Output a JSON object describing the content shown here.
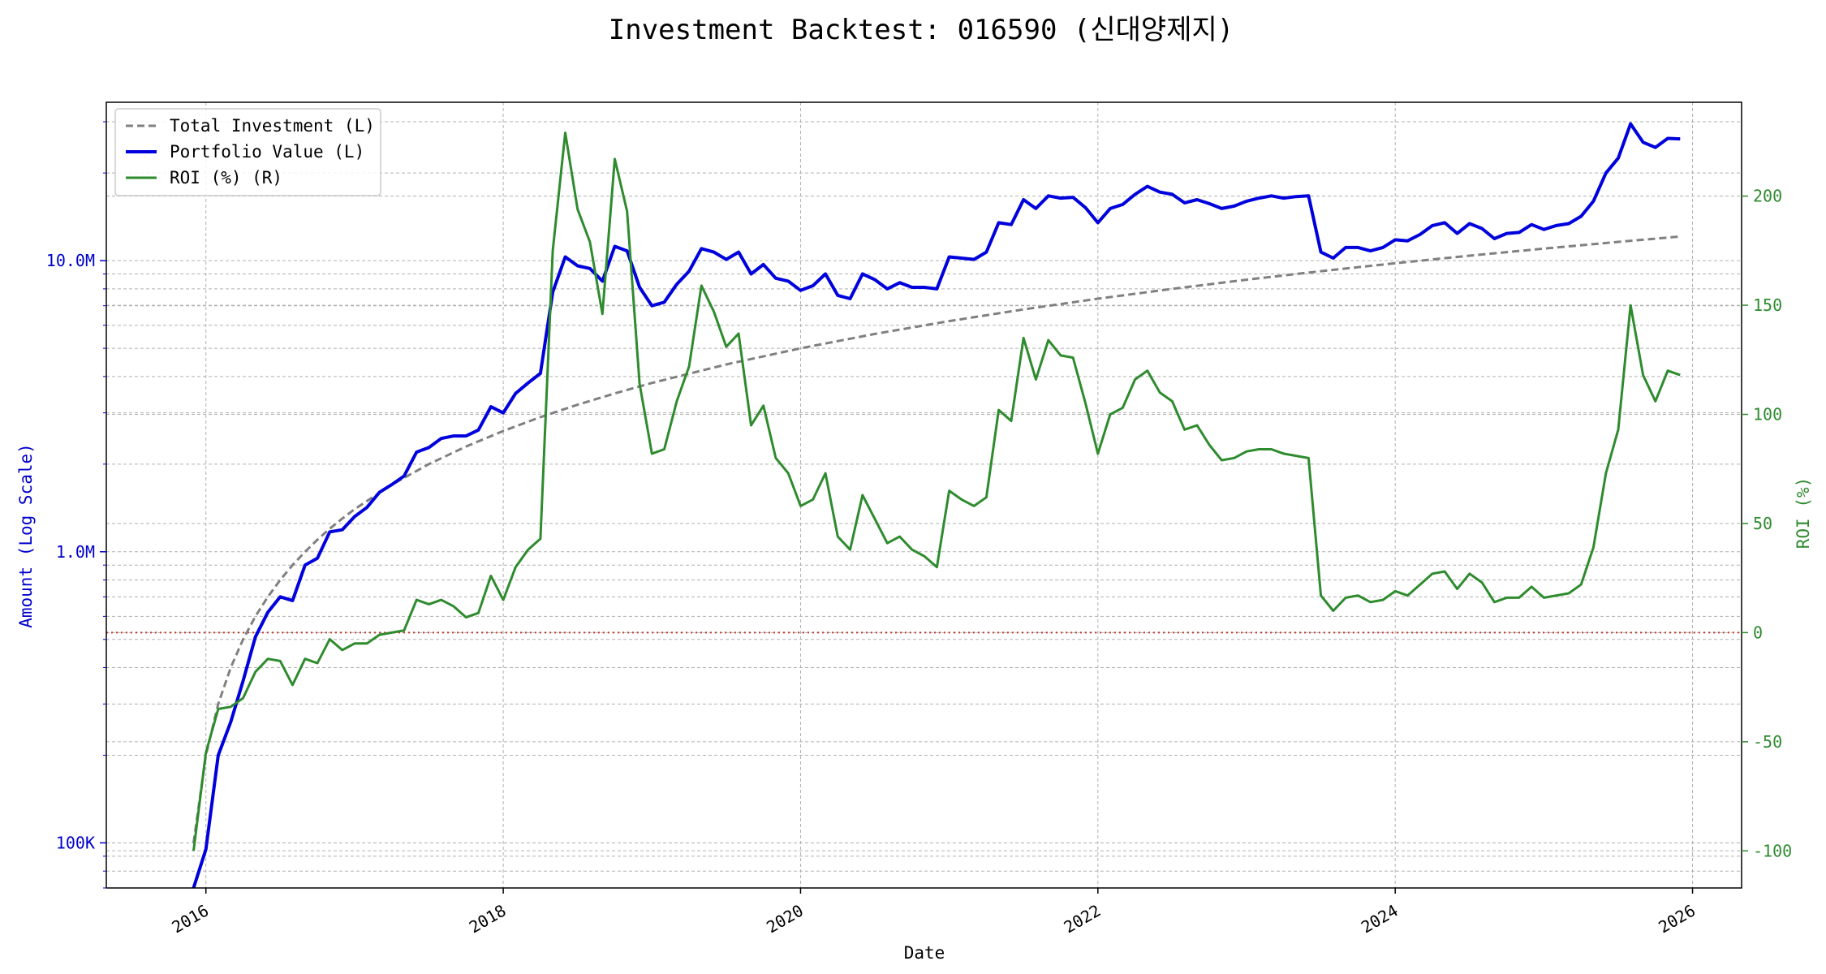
{
  "chart_data": {
    "type": "line",
    "title": "Investment Backtest: 016590 (신대양제지)",
    "xlabel": "Date",
    "ylabel_left": "Amount (Log Scale)",
    "ylabel_right": "ROI (%)",
    "left_axis_scale": "log",
    "left_ylim": [
      70000,
      35000000
    ],
    "right_ylim": [
      -117,
      243
    ],
    "xlim": [
      2015.33,
      2026.33
    ],
    "x_ticks": [
      "2016",
      "2018",
      "2020",
      "2022",
      "2024",
      "2026"
    ],
    "left_tick_labels": [
      "100K",
      "1.0M",
      "10.0M"
    ],
    "right_tick_labels": [
      "-100",
      "-50",
      "0",
      "50",
      "100",
      "150",
      "200"
    ],
    "grid": true,
    "legend_position": "upper-left",
    "reference_line": {
      "axis": "right",
      "value": 0,
      "style": "dotted",
      "color": "#c0392b"
    },
    "colors": {
      "total_investment": "#808080",
      "portfolio_value": "#0000dd",
      "roi": "#2e8b2e",
      "left_axis": "#0000cc",
      "right_axis": "#2e8b2e"
    },
    "series": [
      {
        "name": "Total Investment (L)",
        "axis": "left",
        "style": "dashed",
        "x": [
          2015.917,
          2016.0,
          2016.083,
          2016.167,
          2016.25,
          2016.333,
          2016.417,
          2016.5,
          2016.583,
          2016.667,
          2016.75,
          2016.833,
          2016.917,
          2017.0,
          2017.25,
          2017.5,
          2017.75,
          2018.0,
          2018.25,
          2018.5,
          2018.75,
          2019.0,
          2019.5,
          2020.0,
          2020.5,
          2021.0,
          2021.5,
          2022.0,
          2022.5,
          2023.0,
          2023.5,
          2024.0,
          2024.5,
          2025.0,
          2025.5,
          2025.917
        ],
        "values": [
          100000,
          200000,
          300000,
          400000,
          500000,
          600000,
          700000,
          800000,
          900000,
          1000000,
          1100000,
          1200000,
          1300000,
          1400000,
          1700000,
          2000000,
          2300000,
          2600000,
          2900000,
          3200000,
          3500000,
          3800000,
          4400000,
          5000000,
          5600000,
          6200000,
          6800000,
          7400000,
          8000000,
          8600000,
          9200000,
          9800000,
          10400000,
          11000000,
          11600000,
          12100000
        ]
      },
      {
        "name": "Portfolio Value (L)",
        "axis": "left",
        "style": "solid",
        "x": [
          2015.917,
          2016.0,
          2016.083,
          2016.167,
          2016.25,
          2016.333,
          2016.417,
          2016.5,
          2016.583,
          2016.667,
          2016.75,
          2016.833,
          2016.917,
          2017.0,
          2017.083,
          2017.167,
          2017.25,
          2017.333,
          2017.417,
          2017.5,
          2017.583,
          2017.667,
          2017.75,
          2017.833,
          2017.917,
          2018.0,
          2018.083,
          2018.167,
          2018.25,
          2018.333,
          2018.417,
          2018.5,
          2018.583,
          2018.667,
          2018.75,
          2018.833,
          2018.917,
          2019.0,
          2019.083,
          2019.167,
          2019.25,
          2019.333,
          2019.417,
          2019.5,
          2019.583,
          2019.667,
          2019.75,
          2019.833,
          2019.917,
          2020.0,
          2020.083,
          2020.167,
          2020.25,
          2020.333,
          2020.417,
          2020.5,
          2020.583,
          2020.667,
          2020.75,
          2020.833,
          2020.917,
          2021.0,
          2021.083,
          2021.167,
          2021.25,
          2021.333,
          2021.417,
          2021.5,
          2021.583,
          2021.667,
          2021.75,
          2021.833,
          2021.917,
          2022.0,
          2022.083,
          2022.167,
          2022.25,
          2022.333,
          2022.417,
          2022.5,
          2022.583,
          2022.667,
          2022.75,
          2022.833,
          2022.917,
          2023.0,
          2023.083,
          2023.167,
          2023.25,
          2023.333,
          2023.417,
          2023.5,
          2023.583,
          2023.667,
          2023.75,
          2023.833,
          2023.917,
          2024.0,
          2024.083,
          2024.167,
          2024.25,
          2024.333,
          2024.417,
          2024.5,
          2024.583,
          2024.667,
          2024.75,
          2024.833,
          2024.917,
          2025.0,
          2025.083,
          2025.167,
          2025.25,
          2025.333,
          2025.417,
          2025.5,
          2025.583,
          2025.667,
          2025.75,
          2025.833,
          2025.917
        ],
        "values": [
          70000,
          95000,
          200000,
          260000,
          360000,
          510000,
          620000,
          700000,
          680000,
          900000,
          950000,
          1170000,
          1190000,
          1320000,
          1420000,
          1600000,
          1700000,
          1820000,
          2200000,
          2280000,
          2450000,
          2500000,
          2500000,
          2620000,
          3150000,
          3000000,
          3500000,
          3800000,
          4100000,
          7800000,
          10300000,
          9600000,
          9400000,
          8500000,
          11200000,
          10800000,
          8100000,
          7000000,
          7200000,
          8300000,
          9200000,
          11000000,
          10700000,
          10100000,
          10700000,
          9000000,
          9700000,
          8700000,
          8500000,
          7900000,
          8200000,
          9000000,
          7600000,
          7400000,
          9000000,
          8600000,
          8000000,
          8400000,
          8100000,
          8100000,
          8000000,
          10300000,
          10200000,
          10100000,
          10700000,
          13500000,
          13300000,
          16200000,
          15100000,
          16700000,
          16400000,
          16500000,
          15200000,
          13500000,
          15100000,
          15600000,
          16900000,
          18000000,
          17200000,
          16900000,
          15800000,
          16200000,
          15700000,
          15100000,
          15400000,
          16000000,
          16400000,
          16700000,
          16400000,
          16600000,
          16700000,
          10700000,
          10200000,
          11100000,
          11100000,
          10800000,
          11100000,
          11800000,
          11700000,
          12300000,
          13200000,
          13500000,
          12400000,
          13400000,
          12900000,
          11900000,
          12400000,
          12500000,
          13300000,
          12800000,
          13200000,
          13400000,
          14200000,
          16000000,
          20000000,
          22500000,
          29500000,
          25500000,
          24500000,
          26300000,
          26200000
        ]
      },
      {
        "name": "ROI (%) (R)",
        "axis": "right",
        "style": "solid",
        "x": [
          2015.917,
          2016.0,
          2016.083,
          2016.167,
          2016.25,
          2016.333,
          2016.417,
          2016.5,
          2016.583,
          2016.667,
          2016.75,
          2016.833,
          2016.917,
          2017.0,
          2017.083,
          2017.167,
          2017.25,
          2017.333,
          2017.417,
          2017.5,
          2017.583,
          2017.667,
          2017.75,
          2017.833,
          2017.917,
          2018.0,
          2018.083,
          2018.167,
          2018.25,
          2018.333,
          2018.417,
          2018.5,
          2018.583,
          2018.667,
          2018.75,
          2018.833,
          2018.917,
          2019.0,
          2019.083,
          2019.167,
          2019.25,
          2019.333,
          2019.417,
          2019.5,
          2019.583,
          2019.667,
          2019.75,
          2019.833,
          2019.917,
          2020.0,
          2020.083,
          2020.167,
          2020.25,
          2020.333,
          2020.417,
          2020.5,
          2020.583,
          2020.667,
          2020.75,
          2020.833,
          2020.917,
          2021.0,
          2021.083,
          2021.167,
          2021.25,
          2021.333,
          2021.417,
          2021.5,
          2021.583,
          2021.667,
          2021.75,
          2021.833,
          2021.917,
          2022.0,
          2022.083,
          2022.167,
          2022.25,
          2022.333,
          2022.417,
          2022.5,
          2022.583,
          2022.667,
          2022.75,
          2022.833,
          2022.917,
          2023.0,
          2023.083,
          2023.167,
          2023.25,
          2023.333,
          2023.417,
          2023.5,
          2023.583,
          2023.667,
          2023.75,
          2023.833,
          2023.917,
          2024.0,
          2024.083,
          2024.167,
          2024.25,
          2024.333,
          2024.417,
          2024.5,
          2024.583,
          2024.667,
          2024.75,
          2024.833,
          2024.917,
          2025.0,
          2025.083,
          2025.167,
          2025.25,
          2025.333,
          2025.417,
          2025.5,
          2025.583,
          2025.667,
          2025.75,
          2025.833,
          2025.917
        ],
        "values": [
          -100,
          -55,
          -35,
          -34,
          -30,
          -18,
          -12,
          -13,
          -24,
          -12,
          -14,
          -3,
          -8,
          -5,
          -5,
          -1,
          0,
          1,
          15,
          13,
          15,
          12,
          7,
          9,
          26,
          15,
          30,
          38,
          43,
          175,
          229,
          194,
          179,
          146,
          217,
          193,
          114,
          82,
          84,
          106,
          122,
          159,
          147,
          131,
          137,
          95,
          104,
          80,
          73,
          58,
          61,
          73,
          44,
          38,
          63,
          52,
          41,
          44,
          38,
          35,
          30,
          65,
          61,
          58,
          62,
          102,
          97,
          135,
          116,
          134,
          127,
          126,
          105,
          82,
          100,
          103,
          116,
          120,
          110,
          106,
          93,
          95,
          86,
          79,
          80,
          83,
          84,
          84,
          82,
          81,
          80,
          17,
          10,
          16,
          17,
          14,
          15,
          19,
          17,
          22,
          27,
          28,
          20,
          27,
          23,
          14,
          16,
          16,
          21,
          16,
          17,
          18,
          22,
          39,
          73,
          93,
          150,
          118,
          106,
          120,
          118
        ]
      }
    ]
  }
}
